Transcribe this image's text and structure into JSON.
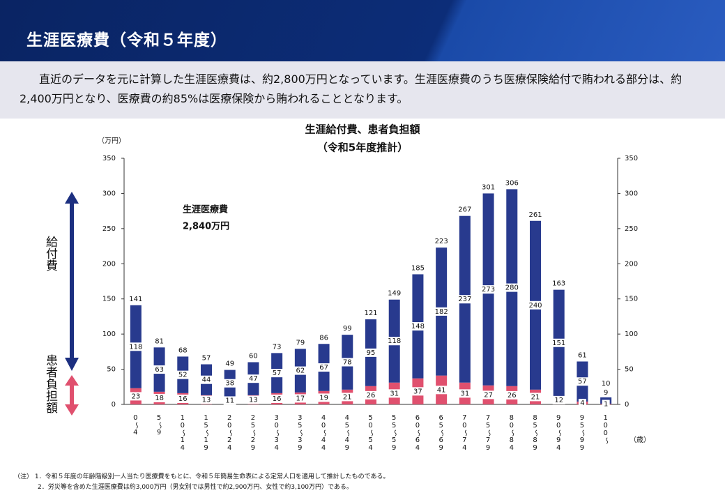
{
  "header": {
    "title": "生涯医療費（令和５年度）"
  },
  "intro": "直近のデータを元に計算した生涯医療費は、約2,800万円となっています。生涯医療費のうち医療保険給付で賄われる部分は、約2,400万円となり、医療費の約85%は医療保険から賄われることとなります。",
  "chart_data": {
    "type": "bar",
    "stacked": true,
    "title": "生涯給付費、患者負担額",
    "subtitle": "（令和5年度推計）",
    "y_unit": "（万円）",
    "x_unit": "（歳）",
    "annotation": [
      "生涯医療費",
      "2,840万円"
    ],
    "side_labels": [
      "給付費",
      "患者負担額"
    ],
    "categories": [
      "0～4",
      "5～9",
      "10～14",
      "15～19",
      "20～24",
      "25～29",
      "30～34",
      "35～39",
      "40～44",
      "45～49",
      "50～54",
      "55～59",
      "60～64",
      "65～69",
      "70～74",
      "75～79",
      "80～84",
      "85～89",
      "90～94",
      "95～99",
      "100～"
    ],
    "totals": [
      141,
      81,
      68,
      57,
      49,
      60,
      73,
      79,
      86,
      99,
      121,
      149,
      185,
      223,
      267,
      301,
      306,
      261,
      163,
      61,
      10
    ],
    "series": [
      {
        "name": "患者負担額",
        "color": "#e0506e",
        "values": [
          23,
          18,
          16,
          13,
          11,
          13,
          16,
          17,
          19,
          21,
          26,
          31,
          37,
          41,
          31,
          27,
          26,
          21,
          12,
          4,
          1
        ]
      },
      {
        "name": "給付費",
        "color": "#283a8e",
        "values": [
          118,
          63,
          52,
          44,
          38,
          47,
          57,
          62,
          67,
          78,
          95,
          118,
          148,
          182,
          237,
          273,
          280,
          240,
          151,
          57,
          9
        ]
      }
    ],
    "ylim": [
      0,
      350
    ],
    "yticks": [
      0,
      50,
      100,
      150,
      200,
      250,
      300,
      350
    ],
    "y2lim": [
      0,
      350
    ],
    "y2ticks": [
      0,
      50,
      100,
      150,
      200,
      250,
      300,
      350
    ],
    "grid": false
  },
  "notes": {
    "prefix": "（注）",
    "items": [
      "1．令和５年度の年齢階級別一人当たり医療費をもとに、令和５年簡易生命表による定常人口を適用して推計したものである。",
      "2．労災等を含めた生涯医療費は約3,000万円（男女別では男性で約2,900万円、女性で約3,100万円）である。"
    ]
  }
}
